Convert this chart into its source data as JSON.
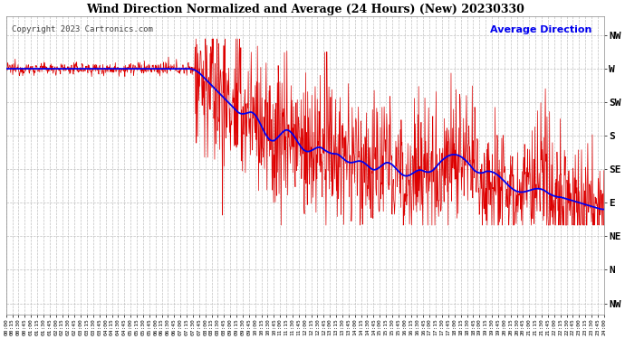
{
  "title": "Wind Direction Normalized and Average (24 Hours) (New) 20230330",
  "copyright": "Copyright 2023 Cartronics.com",
  "legend_label": "Average Direction",
  "background_color": "#ffffff",
  "plot_bg_color": "#ffffff",
  "grid_color": "#b0b0b0",
  "red_color": "#dd0000",
  "blue_color": "#0000ee",
  "ytick_labels": [
    "NW",
    "W",
    "SW",
    "S",
    "SE",
    "E",
    "NE",
    "N",
    "NW"
  ],
  "ytick_values": [
    315,
    270,
    225,
    180,
    135,
    90,
    45,
    0,
    -45
  ],
  "ymin": -60,
  "ymax": 340,
  "total_minutes": 1440,
  "num_points": 1440
}
